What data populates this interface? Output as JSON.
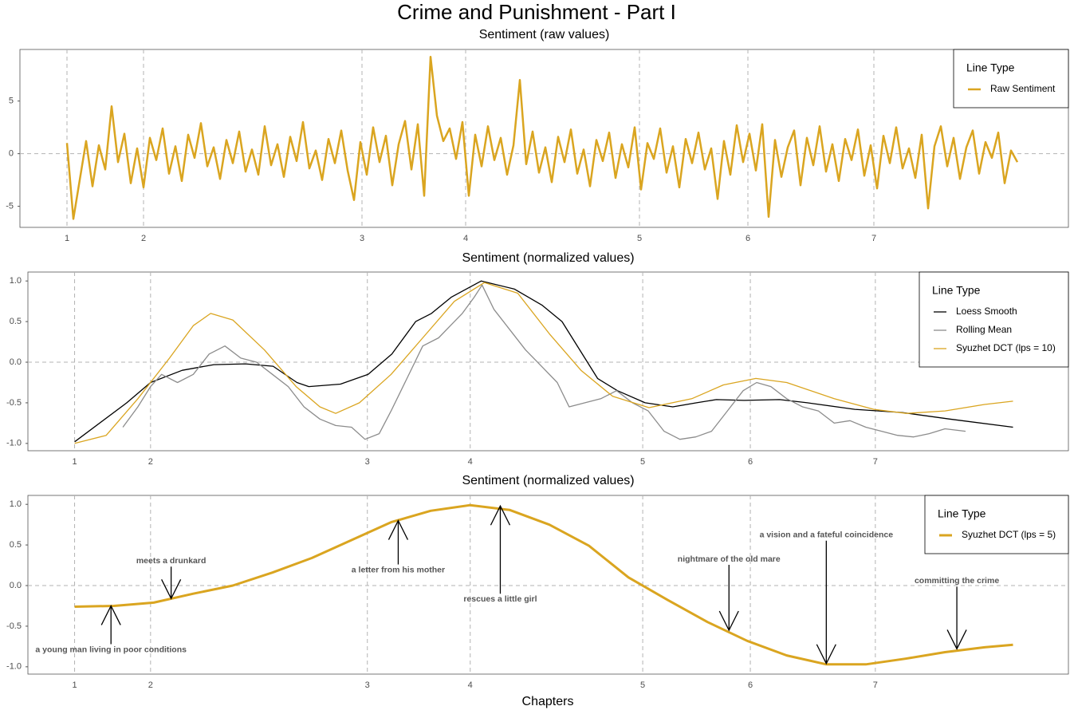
{
  "title": "Crime and Punishment - Part I",
  "x_label": "Chapters",
  "chart_data": [
    {
      "type": "line",
      "title": "Sentiment (raw values)",
      "xlim": [
        -59,
        1256
      ],
      "ylim": [
        -7,
        9.9
      ],
      "xticks": [
        {
          "value": 0,
          "label": "1"
        },
        {
          "value": 96,
          "label": "2"
        },
        {
          "value": 370,
          "label": "3"
        },
        {
          "value": 500,
          "label": "4"
        },
        {
          "value": 718,
          "label": "5"
        },
        {
          "value": 854,
          "label": "6"
        },
        {
          "value": 1012,
          "label": "7"
        }
      ],
      "yticks": [
        -5,
        0,
        5
      ],
      "zero_line": true,
      "line_width": 2.5,
      "legend": {
        "title": "Line Type",
        "position": "top-right"
      },
      "series": [
        {
          "name": "Raw Sentiment",
          "color": "#DAA520",
          "x": [
            0,
            8,
            16,
            24,
            32,
            40,
            48,
            56,
            64,
            72,
            80,
            88,
            96,
            104,
            112,
            120,
            128,
            136,
            144,
            152,
            160,
            168,
            176,
            184,
            192,
            200,
            208,
            216,
            224,
            232,
            240,
            248,
            256,
            264,
            272,
            280,
            288,
            296,
            304,
            312,
            320,
            328,
            336,
            344,
            352,
            360,
            368,
            376,
            384,
            392,
            400,
            408,
            416,
            424,
            432,
            440,
            448,
            456,
            464,
            472,
            480,
            488,
            496,
            504,
            512,
            520,
            528,
            536,
            544,
            552,
            560,
            568,
            576,
            584,
            592,
            600,
            608,
            616,
            624,
            632,
            640,
            648,
            656,
            664,
            672,
            680,
            688,
            696,
            704,
            712,
            720,
            728,
            736,
            744,
            752,
            760,
            768,
            776,
            784,
            792,
            800,
            808,
            816,
            824,
            832,
            840,
            848,
            856,
            864,
            872,
            880,
            888,
            896,
            904,
            912,
            920,
            928,
            936,
            944,
            952,
            960,
            968,
            976,
            984,
            992,
            1000,
            1008,
            1016,
            1024,
            1032,
            1040,
            1048,
            1056,
            1064,
            1072,
            1080,
            1088,
            1096,
            1104,
            1112,
            1120,
            1128,
            1136,
            1144,
            1152,
            1160,
            1168,
            1176,
            1184,
            1192
          ],
          "values": [
            1.0,
            -6.2,
            -2.5,
            1.2,
            -3.1,
            0.8,
            -1.5,
            4.5,
            -0.8,
            1.9,
            -2.8,
            0.5,
            -3.2,
            1.5,
            -0.6,
            2.4,
            -1.9,
            0.7,
            -2.6,
            1.8,
            -0.4,
            2.9,
            -1.2,
            0.6,
            -2.4,
            1.3,
            -0.9,
            2.1,
            -1.7,
            0.4,
            -2.0,
            2.6,
            -1.1,
            0.9,
            -2.2,
            1.6,
            -0.7,
            3.0,
            -1.4,
            0.3,
            -2.5,
            1.4,
            -0.9,
            2.2,
            -1.6,
            -4.4,
            1.1,
            -2.0,
            2.5,
            -0.8,
            1.7,
            -3.0,
            0.9,
            3.1,
            -1.5,
            2.8,
            -4.0,
            9.2,
            3.6,
            1.2,
            2.4,
            -0.5,
            3.0,
            -4.0,
            1.8,
            -1.2,
            2.6,
            -0.6,
            1.5,
            -2.0,
            0.8,
            7.0,
            -1.0,
            2.1,
            -1.8,
            0.6,
            -2.7,
            1.6,
            -0.8,
            2.3,
            -1.9,
            0.4,
            -3.1,
            1.3,
            -0.7,
            2.0,
            -2.3,
            0.9,
            -1.3,
            2.5,
            -3.4,
            1.0,
            -0.5,
            2.4,
            -1.8,
            0.7,
            -3.2,
            1.4,
            -0.9,
            2.0,
            -1.5,
            0.5,
            -4.3,
            1.2,
            -2.0,
            2.7,
            -0.8,
            1.9,
            -1.6,
            2.8,
            -6.0,
            1.3,
            -2.2,
            0.6,
            2.2,
            -3.0,
            1.5,
            -1.1,
            2.6,
            -1.7,
            0.9,
            -2.6,
            1.4,
            -0.6,
            2.3,
            -2.1,
            0.8,
            -3.3,
            1.7,
            -0.9,
            2.5,
            -1.4,
            0.5,
            -2.3,
            1.8,
            -5.2,
            0.7,
            2.6,
            -1.2,
            1.5,
            -2.4,
            0.6,
            2.2,
            -1.9,
            1.1,
            -0.4,
            2.0,
            -2.8,
            0.3,
            -0.8
          ]
        }
      ]
    },
    {
      "type": "line",
      "title": "Sentiment (normalized values)",
      "xlim": [
        -59,
        1256
      ],
      "ylim": [
        -1.09,
        1.11
      ],
      "xticks": [
        {
          "value": 0,
          "label": "1"
        },
        {
          "value": 96,
          "label": "2"
        },
        {
          "value": 370,
          "label": "3"
        },
        {
          "value": 500,
          "label": "4"
        },
        {
          "value": 718,
          "label": "5"
        },
        {
          "value": 854,
          "label": "6"
        },
        {
          "value": 1012,
          "label": "7"
        }
      ],
      "yticks": [
        {
          "value": -1,
          "label": "-1.0"
        },
        {
          "value": -0.5,
          "label": "-0.5"
        },
        {
          "value": 0,
          "label": "0.0"
        },
        {
          "value": 0.5,
          "label": "0.5"
        },
        {
          "value": 1,
          "label": "1.0"
        }
      ],
      "zero_line": true,
      "line_width": 1.3,
      "legend": {
        "title": "Line Type",
        "position": "top-right"
      },
      "series": [
        {
          "name": "Loess Smooth",
          "color": "#000000",
          "x": [
            0,
            66,
            96,
            136,
            176,
            216,
            251,
            281,
            296,
            336,
            371,
            401,
            431,
            451,
            476,
            514,
            556,
            591,
            616,
            661,
            686,
            721,
            756,
            786,
            811,
            846,
            891,
            926,
            986,
            1046,
            1106,
            1186
          ],
          "values": [
            -0.98,
            -0.5,
            -0.25,
            -0.1,
            -0.03,
            -0.02,
            -0.05,
            -0.25,
            -0.3,
            -0.27,
            -0.15,
            0.1,
            0.5,
            0.6,
            0.8,
            1.0,
            0.9,
            0.7,
            0.5,
            -0.2,
            -0.35,
            -0.5,
            -0.55,
            -0.5,
            -0.46,
            -0.47,
            -0.46,
            -0.5,
            -0.58,
            -0.62,
            -0.7,
            -0.8
          ]
        },
        {
          "name": "Rolling Mean",
          "color": "#8c8c8c",
          "x": [
            61,
            80,
            96,
            110,
            130,
            150,
            170,
            190,
            210,
            230,
            250,
            270,
            290,
            310,
            330,
            350,
            367,
            385,
            400,
            420,
            440,
            460,
            475,
            490,
            505,
            515,
            530,
            550,
            570,
            590,
            610,
            625,
            645,
            665,
            685,
            705,
            725,
            745,
            765,
            785,
            805,
            825,
            845,
            862,
            880,
            900,
            920,
            940,
            960,
            980,
            1000,
            1020,
            1040,
            1060,
            1080,
            1100,
            1126
          ],
          "values": [
            -0.8,
            -0.55,
            -0.3,
            -0.15,
            -0.25,
            -0.15,
            0.1,
            0.2,
            0.05,
            0.0,
            -0.15,
            -0.3,
            -0.55,
            -0.7,
            -0.78,
            -0.8,
            -0.95,
            -0.88,
            -0.6,
            -0.2,
            0.2,
            0.3,
            0.45,
            0.6,
            0.8,
            0.95,
            0.65,
            0.4,
            0.15,
            -0.05,
            -0.25,
            -0.55,
            -0.5,
            -0.45,
            -0.35,
            -0.5,
            -0.6,
            -0.85,
            -0.95,
            -0.92,
            -0.85,
            -0.6,
            -0.35,
            -0.25,
            -0.3,
            -0.45,
            -0.55,
            -0.6,
            -0.75,
            -0.72,
            -0.8,
            -0.85,
            -0.9,
            -0.92,
            -0.88,
            -0.82,
            -0.85
          ]
        },
        {
          "name": "Syuzhet DCT (lps = 10)",
          "color": "#DAA520",
          "x": [
            0,
            40,
            80,
            120,
            150,
            172,
            200,
            240,
            280,
            310,
            330,
            360,
            400,
            440,
            480,
            518,
            560,
            600,
            640,
            680,
            726,
            780,
            820,
            861,
            900,
            960,
            1010,
            1051,
            1100,
            1150,
            1186
          ],
          "values": [
            -1.0,
            -0.9,
            -0.45,
            0.05,
            0.45,
            0.6,
            0.52,
            0.15,
            -0.3,
            -0.55,
            -0.63,
            -0.5,
            -0.15,
            0.3,
            0.75,
            0.98,
            0.85,
            0.35,
            -0.1,
            -0.42,
            -0.56,
            -0.45,
            -0.28,
            -0.2,
            -0.25,
            -0.45,
            -0.58,
            -0.63,
            -0.6,
            -0.52,
            -0.48
          ]
        }
      ]
    },
    {
      "type": "line",
      "title": "Sentiment (normalized values)",
      "xlim": [
        -59,
        1256
      ],
      "ylim": [
        -1.09,
        1.11
      ],
      "xticks": [
        {
          "value": 0,
          "label": "1"
        },
        {
          "value": 96,
          "label": "2"
        },
        {
          "value": 370,
          "label": "3"
        },
        {
          "value": 500,
          "label": "4"
        },
        {
          "value": 718,
          "label": "5"
        },
        {
          "value": 854,
          "label": "6"
        },
        {
          "value": 1012,
          "label": "7"
        }
      ],
      "yticks": [
        {
          "value": -1,
          "label": "-1.0"
        },
        {
          "value": -0.5,
          "label": "-0.5"
        },
        {
          "value": 0,
          "label": "0.0"
        },
        {
          "value": 0.5,
          "label": "0.5"
        },
        {
          "value": 1,
          "label": "1.0"
        }
      ],
      "zero_line": true,
      "line_width": 3,
      "legend": {
        "title": "Line Type",
        "position": "top-right"
      },
      "series": [
        {
          "name": "Syuzhet DCT (lps = 5)",
          "color": "#DAA520",
          "x": [
            0,
            50,
            100,
            150,
            200,
            250,
            300,
            350,
            400,
            450,
            500,
            550,
            600,
            650,
            700,
            750,
            800,
            850,
            900,
            950,
            1000,
            1050,
            1100,
            1150,
            1186
          ],
          "values": [
            -0.26,
            -0.25,
            -0.21,
            -0.1,
            0.0,
            0.16,
            0.34,
            0.56,
            0.78,
            0.92,
            0.99,
            0.93,
            0.75,
            0.49,
            0.1,
            -0.18,
            -0.45,
            -0.68,
            -0.86,
            -0.97,
            -0.97,
            -0.9,
            -0.82,
            -0.76,
            -0.73
          ]
        }
      ],
      "annotations": [
        {
          "label": "a young man living in poor conditions",
          "x": 46,
          "y": -0.25
        },
        {
          "label": "meets a drunkard",
          "x": 122,
          "y": -0.16
        },
        {
          "label": "a letter from his mother",
          "x": 409,
          "y": 0.8
        },
        {
          "label": "rescues a little girl",
          "x": 538,
          "y": 0.98
        },
        {
          "label": "nightmare of the old mare",
          "x": 827,
          "y": -0.55
        },
        {
          "label": "a vision and a fateful coincidence",
          "x": 950,
          "y": -0.96
        },
        {
          "label": "committing the crime",
          "x": 1115,
          "y": -0.78
        }
      ]
    }
  ]
}
